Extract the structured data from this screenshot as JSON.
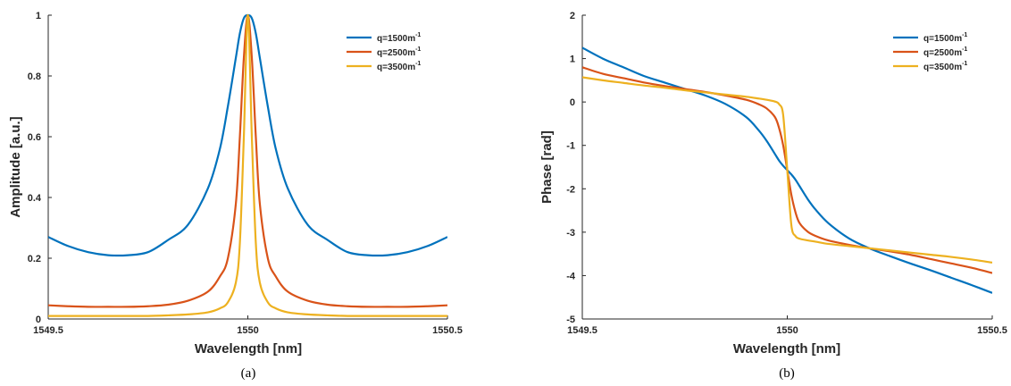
{
  "chart_data": [
    {
      "type": "line",
      "panel_label": "(a)",
      "xlabel": "Wavelength [nm]",
      "ylabel": "Amplitude [a.u.]",
      "xlim": [
        1549.5,
        1550.5
      ],
      "ylim": [
        0,
        1
      ],
      "xticks": [
        "1549.5",
        "1550",
        "1550.5"
      ],
      "yticks": [
        "0",
        "0.2",
        "0.4",
        "0.6",
        "0.8",
        "1"
      ],
      "grid": false,
      "legend_position": "top-right",
      "x": [
        1549.5,
        1549.55,
        1549.6,
        1549.65,
        1549.7,
        1549.75,
        1549.8,
        1549.85,
        1549.9,
        1549.93,
        1549.95,
        1549.97,
        1549.98,
        1549.99,
        1550.0,
        1550.01,
        1550.02,
        1550.03,
        1550.05,
        1550.07,
        1550.1,
        1550.15,
        1550.2,
        1550.25,
        1550.3,
        1550.35,
        1550.4,
        1550.45,
        1550.5
      ],
      "series": [
        {
          "name": "q=1500m",
          "color": "#0072BD",
          "values": [
            0.27,
            0.24,
            0.22,
            0.21,
            0.21,
            0.22,
            0.26,
            0.31,
            0.43,
            0.56,
            0.7,
            0.86,
            0.94,
            0.99,
            1.0,
            0.99,
            0.94,
            0.86,
            0.7,
            0.56,
            0.43,
            0.31,
            0.26,
            0.22,
            0.21,
            0.21,
            0.22,
            0.24,
            0.27
          ]
        },
        {
          "name": "q=2500m",
          "color": "#D95319",
          "values": [
            0.045,
            0.042,
            0.04,
            0.04,
            0.04,
            0.042,
            0.047,
            0.06,
            0.09,
            0.14,
            0.2,
            0.38,
            0.6,
            0.86,
            1.0,
            0.86,
            0.6,
            0.38,
            0.2,
            0.14,
            0.09,
            0.06,
            0.047,
            0.042,
            0.04,
            0.04,
            0.04,
            0.042,
            0.045
          ]
        },
        {
          "name": "q=3500m",
          "color": "#EDB120",
          "values": [
            0.01,
            0.01,
            0.01,
            0.01,
            0.01,
            0.01,
            0.012,
            0.015,
            0.022,
            0.035,
            0.055,
            0.12,
            0.25,
            0.6,
            1.0,
            0.6,
            0.25,
            0.12,
            0.055,
            0.035,
            0.022,
            0.015,
            0.012,
            0.01,
            0.01,
            0.01,
            0.01,
            0.01,
            0.01
          ]
        }
      ]
    },
    {
      "type": "line",
      "panel_label": "(b)",
      "xlabel": "Wavelength [nm]",
      "ylabel": "Phase [rad]",
      "xlim": [
        1549.5,
        1550.5
      ],
      "ylim": [
        -5,
        2
      ],
      "xticks": [
        "1549.5",
        "1550",
        "1550.5"
      ],
      "yticks": [
        "-5",
        "-4",
        "-3",
        "-2",
        "-1",
        "0",
        "1",
        "2"
      ],
      "grid": false,
      "legend_position": "top-right",
      "x": [
        1549.5,
        1549.55,
        1549.6,
        1549.65,
        1549.7,
        1549.75,
        1549.8,
        1549.85,
        1549.9,
        1549.93,
        1549.95,
        1549.97,
        1549.98,
        1549.99,
        1550.0,
        1550.01,
        1550.02,
        1550.03,
        1550.05,
        1550.07,
        1550.1,
        1550.15,
        1550.2,
        1550.25,
        1550.3,
        1550.35,
        1550.4,
        1550.45,
        1550.5
      ],
      "series": [
        {
          "name": "q=1500m",
          "color": "#0072BD",
          "values": [
            1.25,
            1.0,
            0.8,
            0.6,
            0.45,
            0.3,
            0.15,
            -0.05,
            -0.35,
            -0.65,
            -0.9,
            -1.2,
            -1.35,
            -1.47,
            -1.57,
            -1.67,
            -1.79,
            -1.94,
            -2.24,
            -2.49,
            -2.79,
            -3.14,
            -3.37,
            -3.55,
            -3.72,
            -3.88,
            -4.05,
            -4.22,
            -4.4
          ]
        },
        {
          "name": "q=2500m",
          "color": "#D95319",
          "values": [
            0.8,
            0.65,
            0.55,
            0.45,
            0.37,
            0.3,
            0.23,
            0.15,
            0.05,
            -0.05,
            -0.15,
            -0.35,
            -0.6,
            -1.0,
            -1.57,
            -2.14,
            -2.54,
            -2.79,
            -2.99,
            -3.09,
            -3.19,
            -3.29,
            -3.37,
            -3.44,
            -3.52,
            -3.62,
            -3.72,
            -3.82,
            -3.94
          ]
        },
        {
          "name": "q=3500m",
          "color": "#EDB120",
          "values": [
            0.57,
            0.5,
            0.44,
            0.38,
            0.33,
            0.27,
            0.22,
            0.17,
            0.12,
            0.08,
            0.05,
            0.01,
            -0.05,
            -0.3,
            -1.57,
            -2.84,
            -3.09,
            -3.15,
            -3.19,
            -3.22,
            -3.27,
            -3.32,
            -3.37,
            -3.42,
            -3.47,
            -3.52,
            -3.57,
            -3.63,
            -3.7
          ]
        }
      ]
    }
  ]
}
